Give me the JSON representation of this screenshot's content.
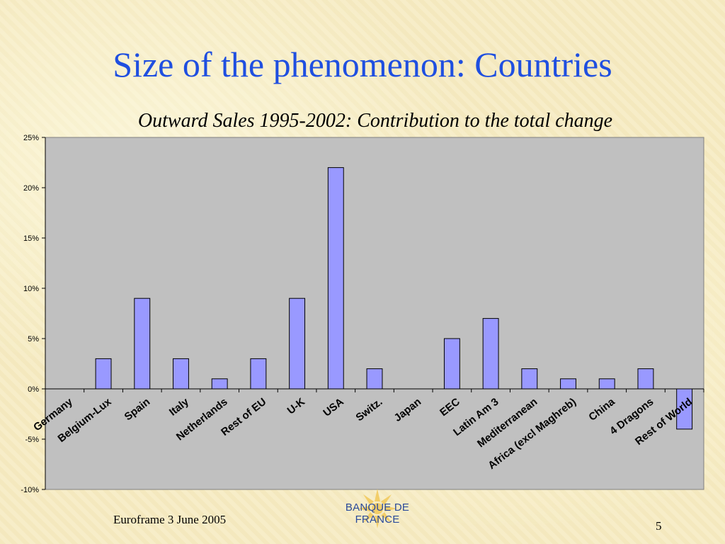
{
  "slide": {
    "title": "Size of the phenomenon: Countries",
    "subtitle": "Outward Sales 1995-2002: Contribution to the total change",
    "footer_left": "Euroframe 3 June 2005",
    "page_number": "5",
    "logo_text": "BANQUE DE FRANCE"
  },
  "colors": {
    "title": "#1f4fe0",
    "bar_fill": "#9999ff",
    "plot_background": "#c0c0c0"
  },
  "chart_data": {
    "type": "bar",
    "title": "Outward Sales 1995-2002: Contribution to the total change",
    "categories": [
      "Germany",
      "Belgium-Lux",
      "Spain",
      "Italy",
      "Netherlands",
      "Rest of EU",
      "U-K",
      "USA",
      "Switz.",
      "Japan",
      "EEC",
      "Latin Am 3",
      "Mediterranean",
      "Africa (excl Maghreb)",
      "China",
      "4 Dragons",
      "Rest of World"
    ],
    "values": [
      0,
      3,
      9,
      3,
      1,
      3,
      9,
      22,
      2,
      0,
      5,
      7,
      2,
      1,
      1,
      2,
      -4
    ],
    "value_unit": "%",
    "ylim": [
      -10,
      25
    ],
    "yticks": [
      -10,
      -5,
      0,
      5,
      10,
      15,
      20,
      25
    ],
    "ytick_labels": [
      "-10%",
      "-5%",
      "0%",
      "5%",
      "10%",
      "15%",
      "20%",
      "25%"
    ],
    "xlabel": "",
    "ylabel": "",
    "grid": false,
    "legend": "none"
  }
}
